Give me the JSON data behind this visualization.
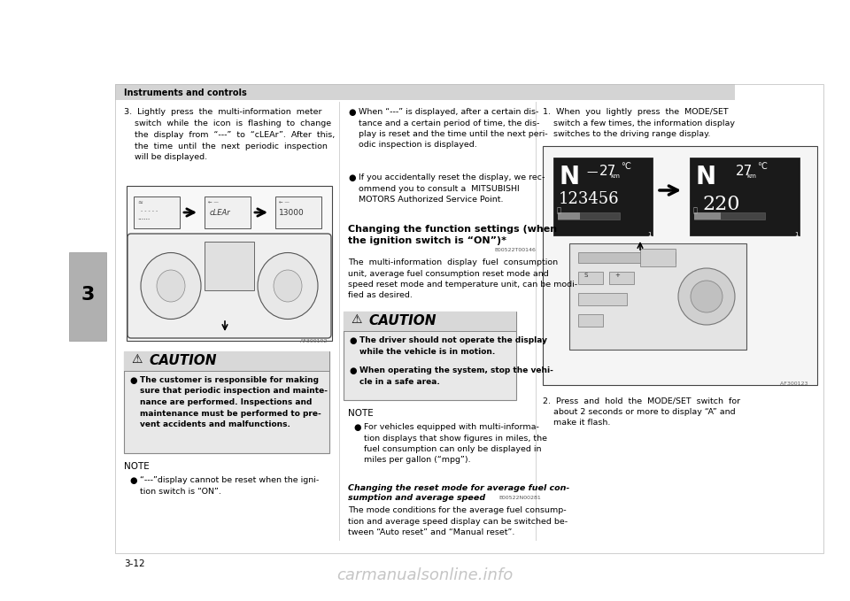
{
  "page_bg": "#ffffff",
  "header_text": "Instruments and controls",
  "tab_text": "3",
  "page_number": "3-12",
  "watermark_text": "carmanualsonline.info"
}
